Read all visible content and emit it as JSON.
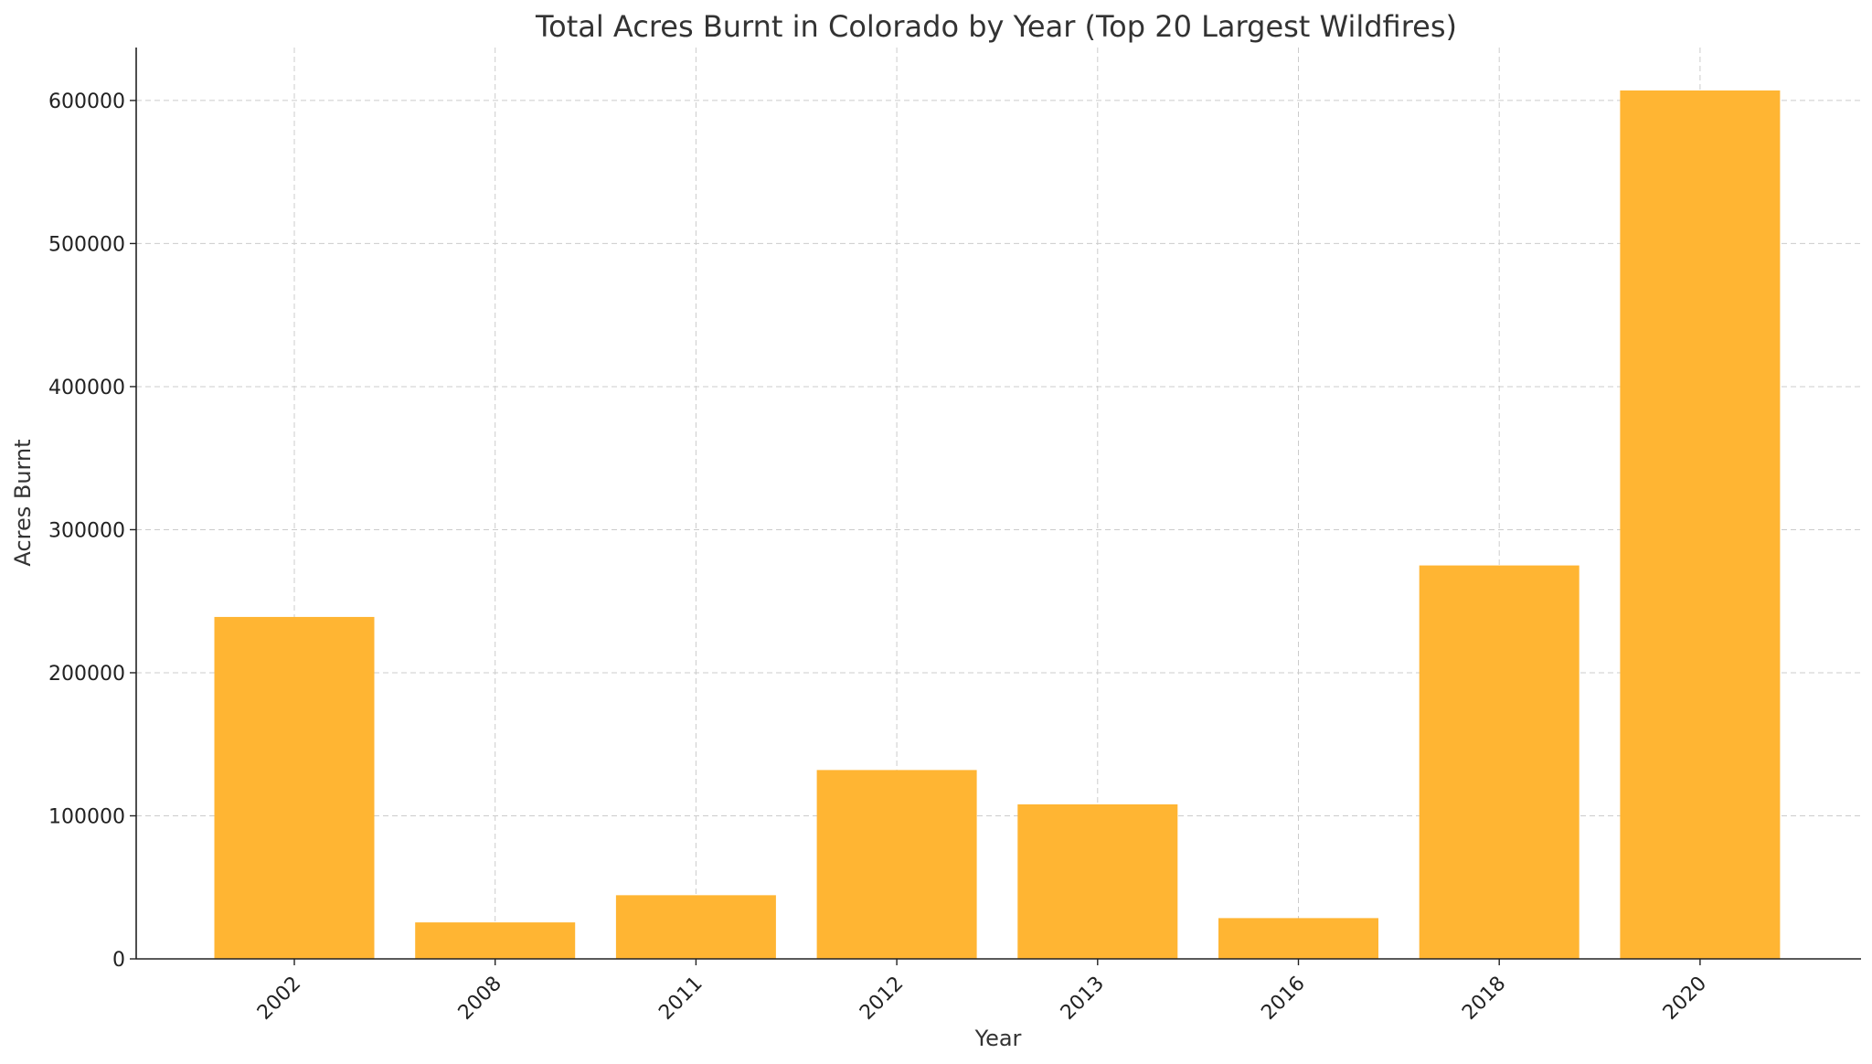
{
  "chart_data": {
    "type": "bar",
    "title": "Total Acres Burnt in Colorado by Year (Top 20 Largest Wildfires)",
    "xlabel": "Year",
    "ylabel": "Acres Burnt",
    "categories": [
      "2002",
      "2008",
      "2011",
      "2012",
      "2013",
      "2016",
      "2018",
      "2020"
    ],
    "values": [
      239000,
      25500,
      44500,
      132000,
      108000,
      28500,
      275000,
      607000
    ],
    "yticks": [
      0,
      100000,
      200000,
      300000,
      400000,
      500000,
      600000
    ],
    "ylim": [
      0,
      637000
    ],
    "grid": true,
    "bar_color": "#FFB533"
  }
}
